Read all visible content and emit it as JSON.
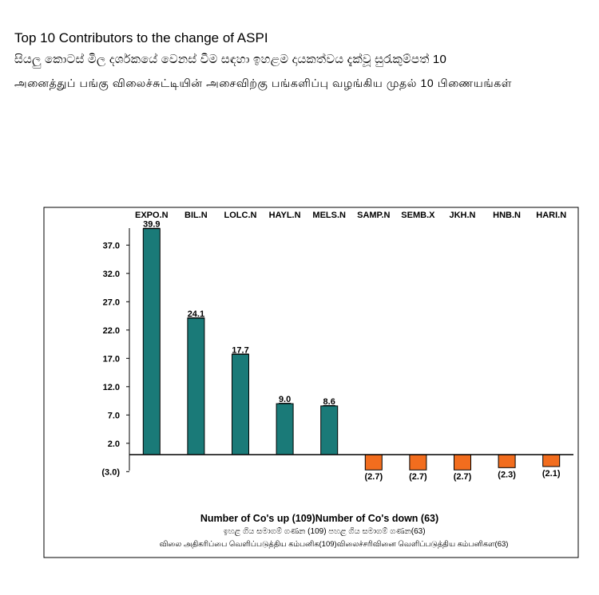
{
  "header": {
    "title_en": "Top 10 Contributors to the change of ASPI",
    "title_si": "සියලු කොටස් මිල දර්ශකයේ වෙනස් වීම සඳහා ඉහළම දායකත්වය දැක්වූ සුරැකුම්පත් 10",
    "title_ta": "அனைத்துப் பங்கு விலைச்சுட்டியின் அசைவிற்கு பங்களிப்பு வழங்கிய முதல் 10 பிணையங்கள்"
  },
  "colors": {
    "up": "#1a7a78",
    "down": "#f26d1e",
    "bar_stroke": "#000000",
    "frame": "#000000"
  },
  "chart_data": {
    "type": "bar",
    "title": "Top 10 Contributors to the change of ASPI",
    "categories": [
      "EXPO.N",
      "BIL.N",
      "LOLC.N",
      "HAYL.N",
      "MELS.N",
      "SAMP.N",
      "SEMB.X",
      "JKH.N",
      "HNB.N",
      "HARI.N"
    ],
    "values": [
      39.9,
      24.1,
      17.7,
      9.0,
      8.6,
      -2.7,
      -2.7,
      -2.7,
      -2.3,
      -2.1
    ],
    "value_labels": [
      "39.9",
      "24.1",
      "17.7",
      "9.0",
      "8.6",
      "(2.7)",
      "(2.7)",
      "(2.7)",
      "(2.3)",
      "(2.1)"
    ],
    "yticks": [
      -3.0,
      2.0,
      7.0,
      12.0,
      17.0,
      22.0,
      27.0,
      32.0,
      37.0
    ],
    "ytick_labels": [
      "(3.0)",
      "2.0",
      "7.0",
      "12.0",
      "17.0",
      "22.0",
      "27.0",
      "32.0",
      "37.0"
    ],
    "ylim": [
      -3.0,
      41.0
    ],
    "grid": false,
    "xlabel": "",
    "ylabel": "",
    "footer": {
      "en": "Number of Co's up (109)Number of Co's down  (63)",
      "si": "ඉහළ ගිය සමාගම් ගණන (109) පහළ ගිය සමාගම් ගණන(63)",
      "ta": "விலை அதிகரிப்பை வெளிப்படுத்திய கம்பனிக(109)விலைச்சரிவினை வெளிப்படுத்திய கம்பனிகள(63)"
    }
  }
}
